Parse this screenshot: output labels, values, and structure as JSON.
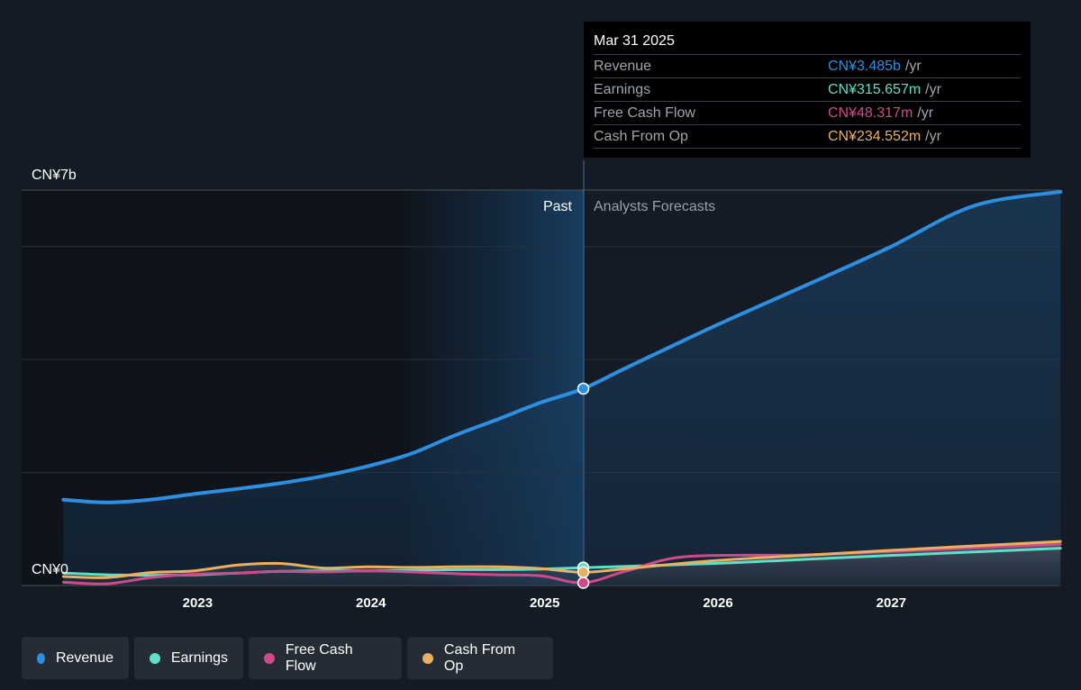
{
  "chart_data": {
    "type": "line",
    "y_axis": {
      "top_label": "CN¥7b",
      "bottom_label": "CN¥0",
      "ylim": [
        0,
        7
      ],
      "unit": "CN¥ billions"
    },
    "x_ticks": [
      "2023",
      "2024",
      "2025",
      "2026",
      "2027"
    ],
    "past_label": "Past",
    "forecast_label": "Analysts Forecasts",
    "divider_date": "2025-03-31",
    "series": [
      {
        "name": "Revenue",
        "color": "#2d8fe0",
        "points": [
          [
            "2022-04-01",
            1.52
          ],
          [
            "2022-07-01",
            1.47
          ],
          [
            "2022-10-01",
            1.52
          ],
          [
            "2023-01-01",
            1.62
          ],
          [
            "2023-04-01",
            1.71
          ],
          [
            "2023-07-01",
            1.81
          ],
          [
            "2023-10-01",
            1.94
          ],
          [
            "2024-01-01",
            2.11
          ],
          [
            "2024-04-01",
            2.33
          ],
          [
            "2024-07-01",
            2.65
          ],
          [
            "2024-10-01",
            2.94
          ],
          [
            "2025-01-01",
            3.24
          ],
          [
            "2025-03-31",
            3.485
          ],
          [
            "2025-07-01",
            3.86
          ],
          [
            "2026-01-01",
            4.59
          ],
          [
            "2026-07-01",
            5.27
          ],
          [
            "2027-01-01",
            5.97
          ],
          [
            "2027-07-01",
            6.72
          ],
          [
            "2027-12-31",
            6.97
          ]
        ]
      },
      {
        "name": "Earnings",
        "color": "#5ee0c8",
        "points": [
          [
            "2022-04-01",
            0.22
          ],
          [
            "2022-07-01",
            0.19
          ],
          [
            "2022-10-01",
            0.18
          ],
          [
            "2023-01-01",
            0.19
          ],
          [
            "2023-04-01",
            0.22
          ],
          [
            "2023-07-01",
            0.25
          ],
          [
            "2023-10-01",
            0.26
          ],
          [
            "2024-01-01",
            0.26
          ],
          [
            "2024-04-01",
            0.27
          ],
          [
            "2024-07-01",
            0.28
          ],
          [
            "2024-10-01",
            0.28
          ],
          [
            "2025-01-01",
            0.29
          ],
          [
            "2025-03-31",
            0.316
          ],
          [
            "2026-01-01",
            0.39
          ],
          [
            "2026-07-01",
            0.46
          ],
          [
            "2027-01-01",
            0.53
          ],
          [
            "2027-12-31",
            0.66
          ]
        ]
      },
      {
        "name": "Free Cash Flow",
        "color": "#d0498a",
        "points": [
          [
            "2022-04-01",
            0.06
          ],
          [
            "2022-07-01",
            0.03
          ],
          [
            "2022-10-01",
            0.14
          ],
          [
            "2023-01-01",
            0.2
          ],
          [
            "2023-04-01",
            0.22
          ],
          [
            "2023-07-01",
            0.25
          ],
          [
            "2023-10-01",
            0.24
          ],
          [
            "2024-01-01",
            0.26
          ],
          [
            "2024-04-01",
            0.24
          ],
          [
            "2024-07-01",
            0.21
          ],
          [
            "2024-10-01",
            0.19
          ],
          [
            "2025-01-01",
            0.17
          ],
          [
            "2025-03-31",
            0.048
          ],
          [
            "2025-07-01",
            0.26
          ],
          [
            "2025-11-01",
            0.51
          ],
          [
            "2026-07-01",
            0.54
          ],
          [
            "2027-01-01",
            0.6
          ],
          [
            "2027-12-31",
            0.73
          ]
        ]
      },
      {
        "name": "Cash From Op",
        "color": "#e8b060",
        "points": [
          [
            "2022-04-01",
            0.16
          ],
          [
            "2022-07-01",
            0.14
          ],
          [
            "2022-10-01",
            0.23
          ],
          [
            "2023-01-01",
            0.26
          ],
          [
            "2023-04-01",
            0.36
          ],
          [
            "2023-07-01",
            0.39
          ],
          [
            "2023-10-01",
            0.31
          ],
          [
            "2024-01-01",
            0.33
          ],
          [
            "2024-04-01",
            0.32
          ],
          [
            "2024-07-01",
            0.33
          ],
          [
            "2024-10-01",
            0.33
          ],
          [
            "2025-01-01",
            0.3
          ],
          [
            "2025-03-31",
            0.235
          ],
          [
            "2025-07-01",
            0.3
          ],
          [
            "2026-01-01",
            0.44
          ],
          [
            "2026-07-01",
            0.53
          ],
          [
            "2027-01-01",
            0.62
          ],
          [
            "2027-12-31",
            0.78
          ]
        ]
      }
    ]
  },
  "tooltip": {
    "date": "Mar 31 2025",
    "rows": [
      {
        "label": "Revenue",
        "value": "CN¥3.485b",
        "unit": "/yr",
        "color": "#2d8fe0"
      },
      {
        "label": "Earnings",
        "value": "CN¥315.657m",
        "unit": "/yr",
        "color": "#5ee0c8"
      },
      {
        "label": "Free Cash Flow",
        "value": "CN¥48.317m",
        "unit": "/yr",
        "color": "#d0498a"
      },
      {
        "label": "Cash From Op",
        "value": "CN¥234.552m",
        "unit": "/yr",
        "color": "#e8b060"
      }
    ]
  },
  "legend": [
    {
      "label": "Revenue",
      "color": "#2d8fe0"
    },
    {
      "label": "Earnings",
      "color": "#5ee0c8"
    },
    {
      "label": "Free Cash Flow",
      "color": "#d0498a"
    },
    {
      "label": "Cash From Op",
      "color": "#e8b060"
    }
  ]
}
